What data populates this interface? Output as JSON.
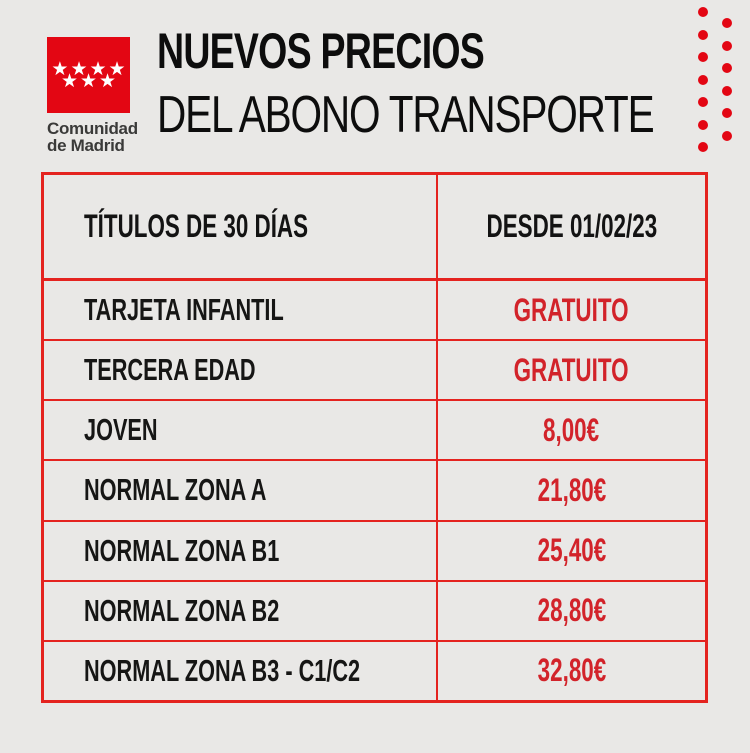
{
  "logo": {
    "stars_row1": "★★★★",
    "stars_row2": "★★★",
    "name_line1": "Comunidad",
    "name_line2": "de Madrid"
  },
  "title": {
    "line1": "NUEVOS PRECIOS",
    "line2": "DEL ABONO TRANSPORTE"
  },
  "table": {
    "header": {
      "col1": "TÍTULOS DE 30 DÍAS",
      "col2": "DESDE 01/02/23"
    },
    "rows": [
      {
        "label": "TARJETA INFANTIL",
        "value": "GRATUITO"
      },
      {
        "label": "TERCERA EDAD",
        "value": "GRATUITO"
      },
      {
        "label": "JOVEN",
        "value": "8,00€"
      },
      {
        "label": "NORMAL ZONA A",
        "value": "21,80€"
      },
      {
        "label": "NORMAL ZONA B1",
        "value": "25,40€"
      },
      {
        "label": "NORMAL ZONA B2",
        "value": "28,80€"
      },
      {
        "label": "NORMAL ZONA B3 - C1/C2",
        "value": "32,80€"
      }
    ]
  },
  "colors": {
    "brand_red": "#e30613",
    "border_red": "#e4231f",
    "value_red": "#d2232a",
    "background": "#e9e8e6",
    "text_dark": "#131313",
    "logo_text": "#3a3a39"
  }
}
